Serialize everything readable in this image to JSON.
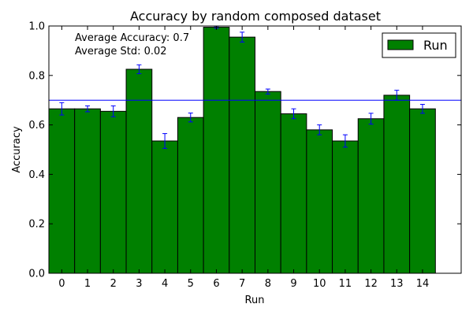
{
  "chart_data": {
    "type": "bar",
    "title": "Accuracy by random composed dataset",
    "xlabel": "Run",
    "ylabel": "Accuracy",
    "categories": [
      "0",
      "1",
      "2",
      "3",
      "4",
      "5",
      "6",
      "7",
      "8",
      "9",
      "10",
      "11",
      "12",
      "13",
      "14"
    ],
    "series": [
      {
        "name": "Run",
        "values": [
          0.665,
          0.665,
          0.655,
          0.825,
          0.535,
          0.63,
          0.995,
          0.955,
          0.735,
          0.645,
          0.58,
          0.535,
          0.625,
          0.72,
          0.665
        ],
        "errors": [
          0.025,
          0.012,
          0.022,
          0.018,
          0.03,
          0.018,
          0.004,
          0.02,
          0.01,
          0.02,
          0.02,
          0.025,
          0.022,
          0.02,
          0.018
        ],
        "color": "#008000",
        "error_color": "#0000ff"
      }
    ],
    "reference_line": {
      "value": 0.7,
      "color": "#0000ff"
    },
    "annotations": [
      "Average Accuracy: 0.7",
      "Average Std: 0.02"
    ],
    "yticks": [
      "0.0",
      "0.2",
      "0.4",
      "0.6",
      "0.8",
      "1.0"
    ],
    "xlim": [
      -0.5,
      15.5
    ],
    "ylim": [
      0,
      1.0
    ],
    "legend_position": "top-right",
    "grid": false
  }
}
